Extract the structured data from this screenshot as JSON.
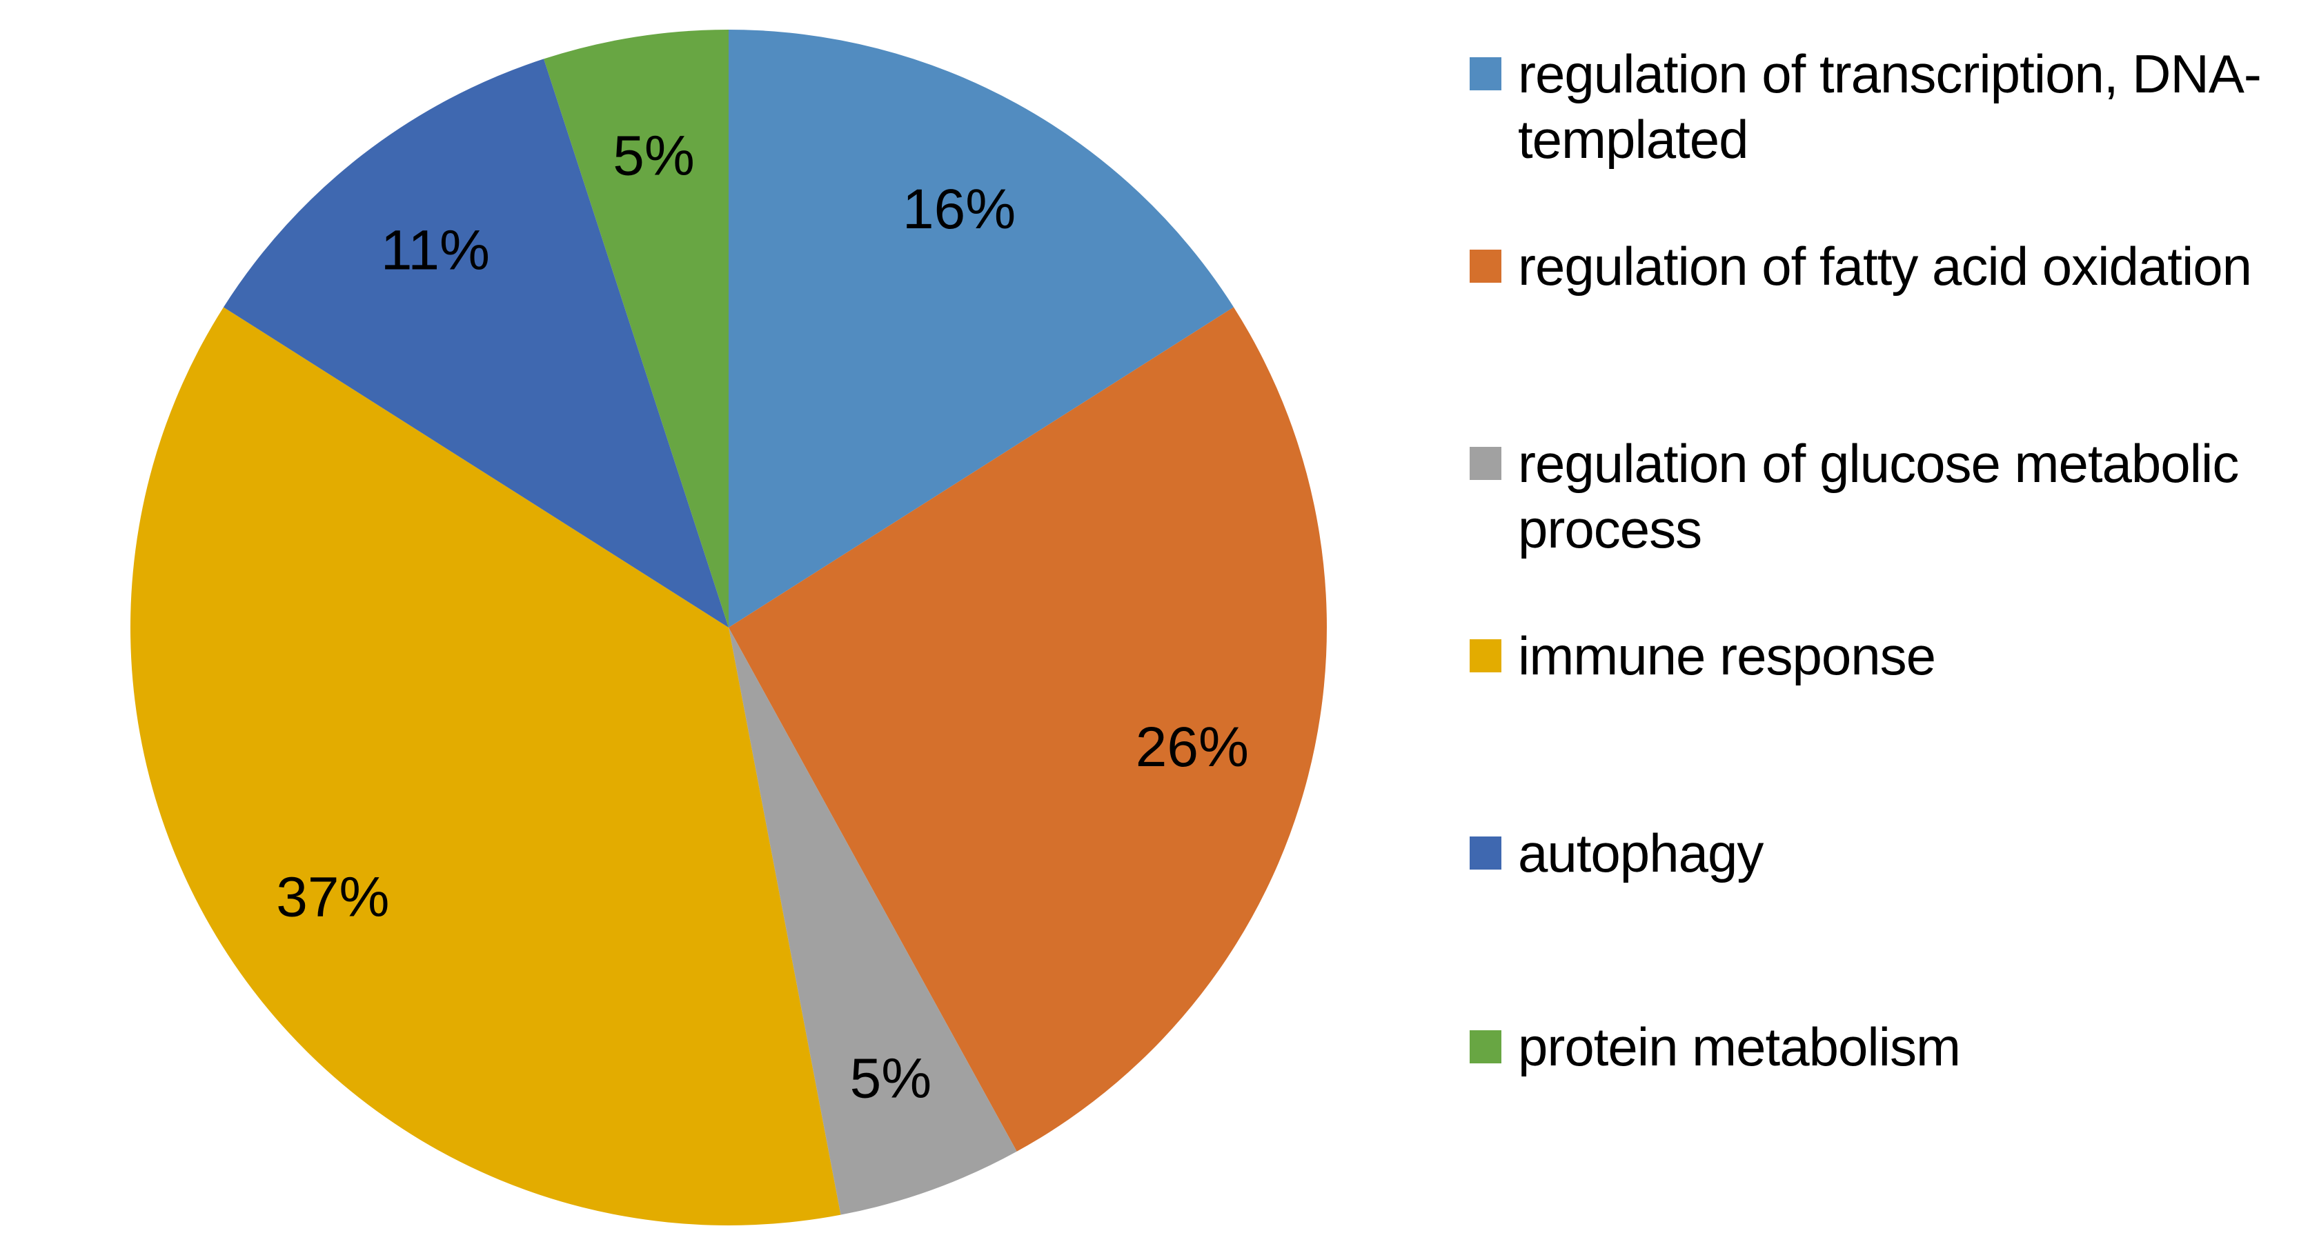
{
  "chart_data": {
    "type": "pie",
    "title": "",
    "categories": [
      "regulation of transcription, DNA-templated",
      "regulation of fatty acid oxidation",
      "regulation of glucose metabolic process",
      "immune response",
      "autophagy",
      "protein metabolism"
    ],
    "values": [
      16,
      26,
      5,
      37,
      11,
      5
    ],
    "labels": [
      "16%",
      "26%",
      "5%",
      "37%",
      "11%",
      "5%"
    ],
    "colors": [
      "#528CC0",
      "#D5702C",
      "#A1A1A1",
      "#E3AC00",
      "#3F68B0",
      "#68A643"
    ],
    "label_color": "#000000",
    "start_angle_deg": 0,
    "direction": "clockwise",
    "legend_position": "right",
    "background": "#FFFFFF"
  }
}
